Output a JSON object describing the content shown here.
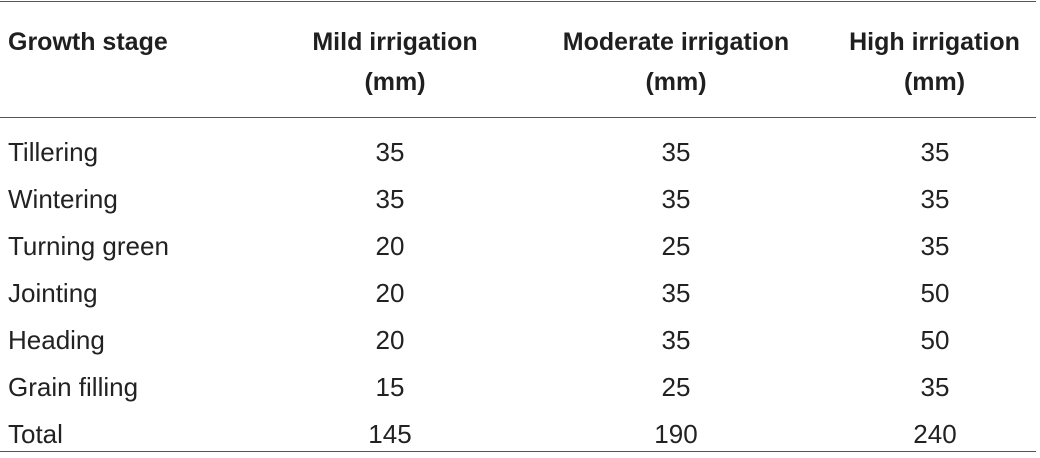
{
  "table": {
    "headers": {
      "stage_line1": "Growth stage",
      "mild_line1": "Mild irrigation",
      "mild_line2": "(mm)",
      "moderate_line1": "Moderate irrigation",
      "moderate_line2": "(mm)",
      "high_line1": "High irrigation",
      "high_line2": "(mm)"
    },
    "rows": [
      {
        "stage": "Tillering",
        "mild": "35",
        "moderate": "35",
        "high": "35"
      },
      {
        "stage": "Wintering",
        "mild": "35",
        "moderate": "35",
        "high": "35"
      },
      {
        "stage": "Turning green",
        "mild": "20",
        "moderate": "25",
        "high": "35"
      },
      {
        "stage": "Jointing",
        "mild": "20",
        "moderate": "35",
        "high": "50"
      },
      {
        "stage": "Heading",
        "mild": "20",
        "moderate": "35",
        "high": "50"
      },
      {
        "stage": "Grain filling",
        "mild": "15",
        "moderate": "25",
        "high": "35"
      },
      {
        "stage": "Total",
        "mild": "145",
        "moderate": "190",
        "high": "240"
      }
    ]
  }
}
